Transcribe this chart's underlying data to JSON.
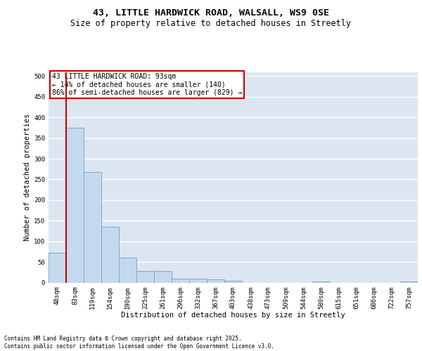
{
  "title_line1": "43, LITTLE HARDWICK ROAD, WALSALL, WS9 0SE",
  "title_line2": "Size of property relative to detached houses in Streetly",
  "xlabel": "Distribution of detached houses by size in Streetly",
  "ylabel": "Number of detached properties",
  "categories": [
    "48sqm",
    "83sqm",
    "119sqm",
    "154sqm",
    "190sqm",
    "225sqm",
    "261sqm",
    "296sqm",
    "332sqm",
    "367sqm",
    "403sqm",
    "438sqm",
    "473sqm",
    "509sqm",
    "544sqm",
    "580sqm",
    "615sqm",
    "651sqm",
    "686sqm",
    "722sqm",
    "757sqm"
  ],
  "values": [
    72,
    375,
    267,
    135,
    60,
    28,
    28,
    10,
    10,
    7,
    5,
    0,
    0,
    0,
    0,
    3,
    0,
    0,
    0,
    0,
    3
  ],
  "bar_color": "#c5d9ee",
  "bar_edge_color": "#7ba7d0",
  "vline_color": "#cc0000",
  "annotation_text": "43 LITTLE HARDWICK ROAD: 93sqm\n← 14% of detached houses are smaller (140)\n86% of semi-detached houses are larger (829) →",
  "annotation_box_color": "#ffffff",
  "annotation_box_edge": "#cc0000",
  "ylim": [
    0,
    510
  ],
  "yticks": [
    0,
    50,
    100,
    150,
    200,
    250,
    300,
    350,
    400,
    450,
    500
  ],
  "background_color": "#dce6f1",
  "grid_color": "#ffffff",
  "footer": "Contains HM Land Registry data © Crown copyright and database right 2025.\nContains public sector information licensed under the Open Government Licence v3.0.",
  "title_fontsize": 9.5,
  "subtitle_fontsize": 8.5,
  "axis_label_fontsize": 7.5,
  "tick_fontsize": 6.5,
  "annotation_fontsize": 7,
  "footer_fontsize": 5.5
}
